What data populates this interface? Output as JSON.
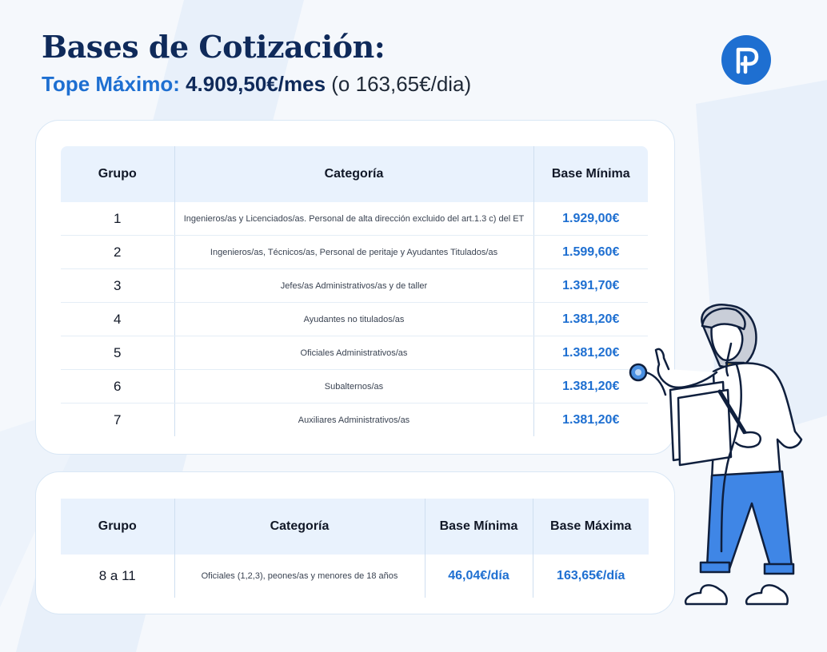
{
  "header": {
    "title": "Bases de Cotización:",
    "subtitle_label": "Tope Máximo:",
    "subtitle_value": "4.909,50€/mes",
    "subtitle_note": "(o 163,65€/dia)"
  },
  "logo": {
    "icon": "p-logo-icon",
    "color": "#1e6fd1"
  },
  "table1": {
    "headers": [
      "Grupo",
      "Categoría",
      "Base Mínima"
    ],
    "rows": [
      {
        "grupo": "1",
        "categoria": "Ingenieros/as y Licenciados/as. Personal de alta dirección excluido del art.1.3 c) del ET",
        "base_minima": "1.929,00€"
      },
      {
        "grupo": "2",
        "categoria": "Ingenieros/as, Técnicos/as, Personal de peritaje y Ayudantes Titulados/as",
        "base_minima": "1.599,60€"
      },
      {
        "grupo": "3",
        "categoria": "Jefes/as Administrativos/as y de taller",
        "base_minima": "1.391,70€"
      },
      {
        "grupo": "4",
        "categoria": "Ayudantes no titulados/as",
        "base_minima": "1.381,20€"
      },
      {
        "grupo": "5",
        "categoria": "Oficiales Administrativos/as",
        "base_minima": "1.381,20€"
      },
      {
        "grupo": "6",
        "categoria": "Subalternos/as",
        "base_minima": "1.381,20€"
      },
      {
        "grupo": "7",
        "categoria": "Auxiliares Administrativos/as",
        "base_minima": "1.381,20€"
      }
    ]
  },
  "table2": {
    "headers": [
      "Grupo",
      "Categoría",
      "Base Mínima",
      "Base Máxima"
    ],
    "rows": [
      {
        "grupo": "8 a 11",
        "categoria": "Oficiales (1,2,3), peones/as y menores de 18 años",
        "base_minima": "46,04€/día",
        "base_maxima": "163,65€/día"
      }
    ]
  },
  "colors": {
    "accent": "#1e6fd1",
    "navy": "#0f2a5a",
    "header_bg": "#e9f2fd",
    "page_bg": "#f5f8fc"
  },
  "illustration": {
    "icon": "doctor-illustration"
  }
}
